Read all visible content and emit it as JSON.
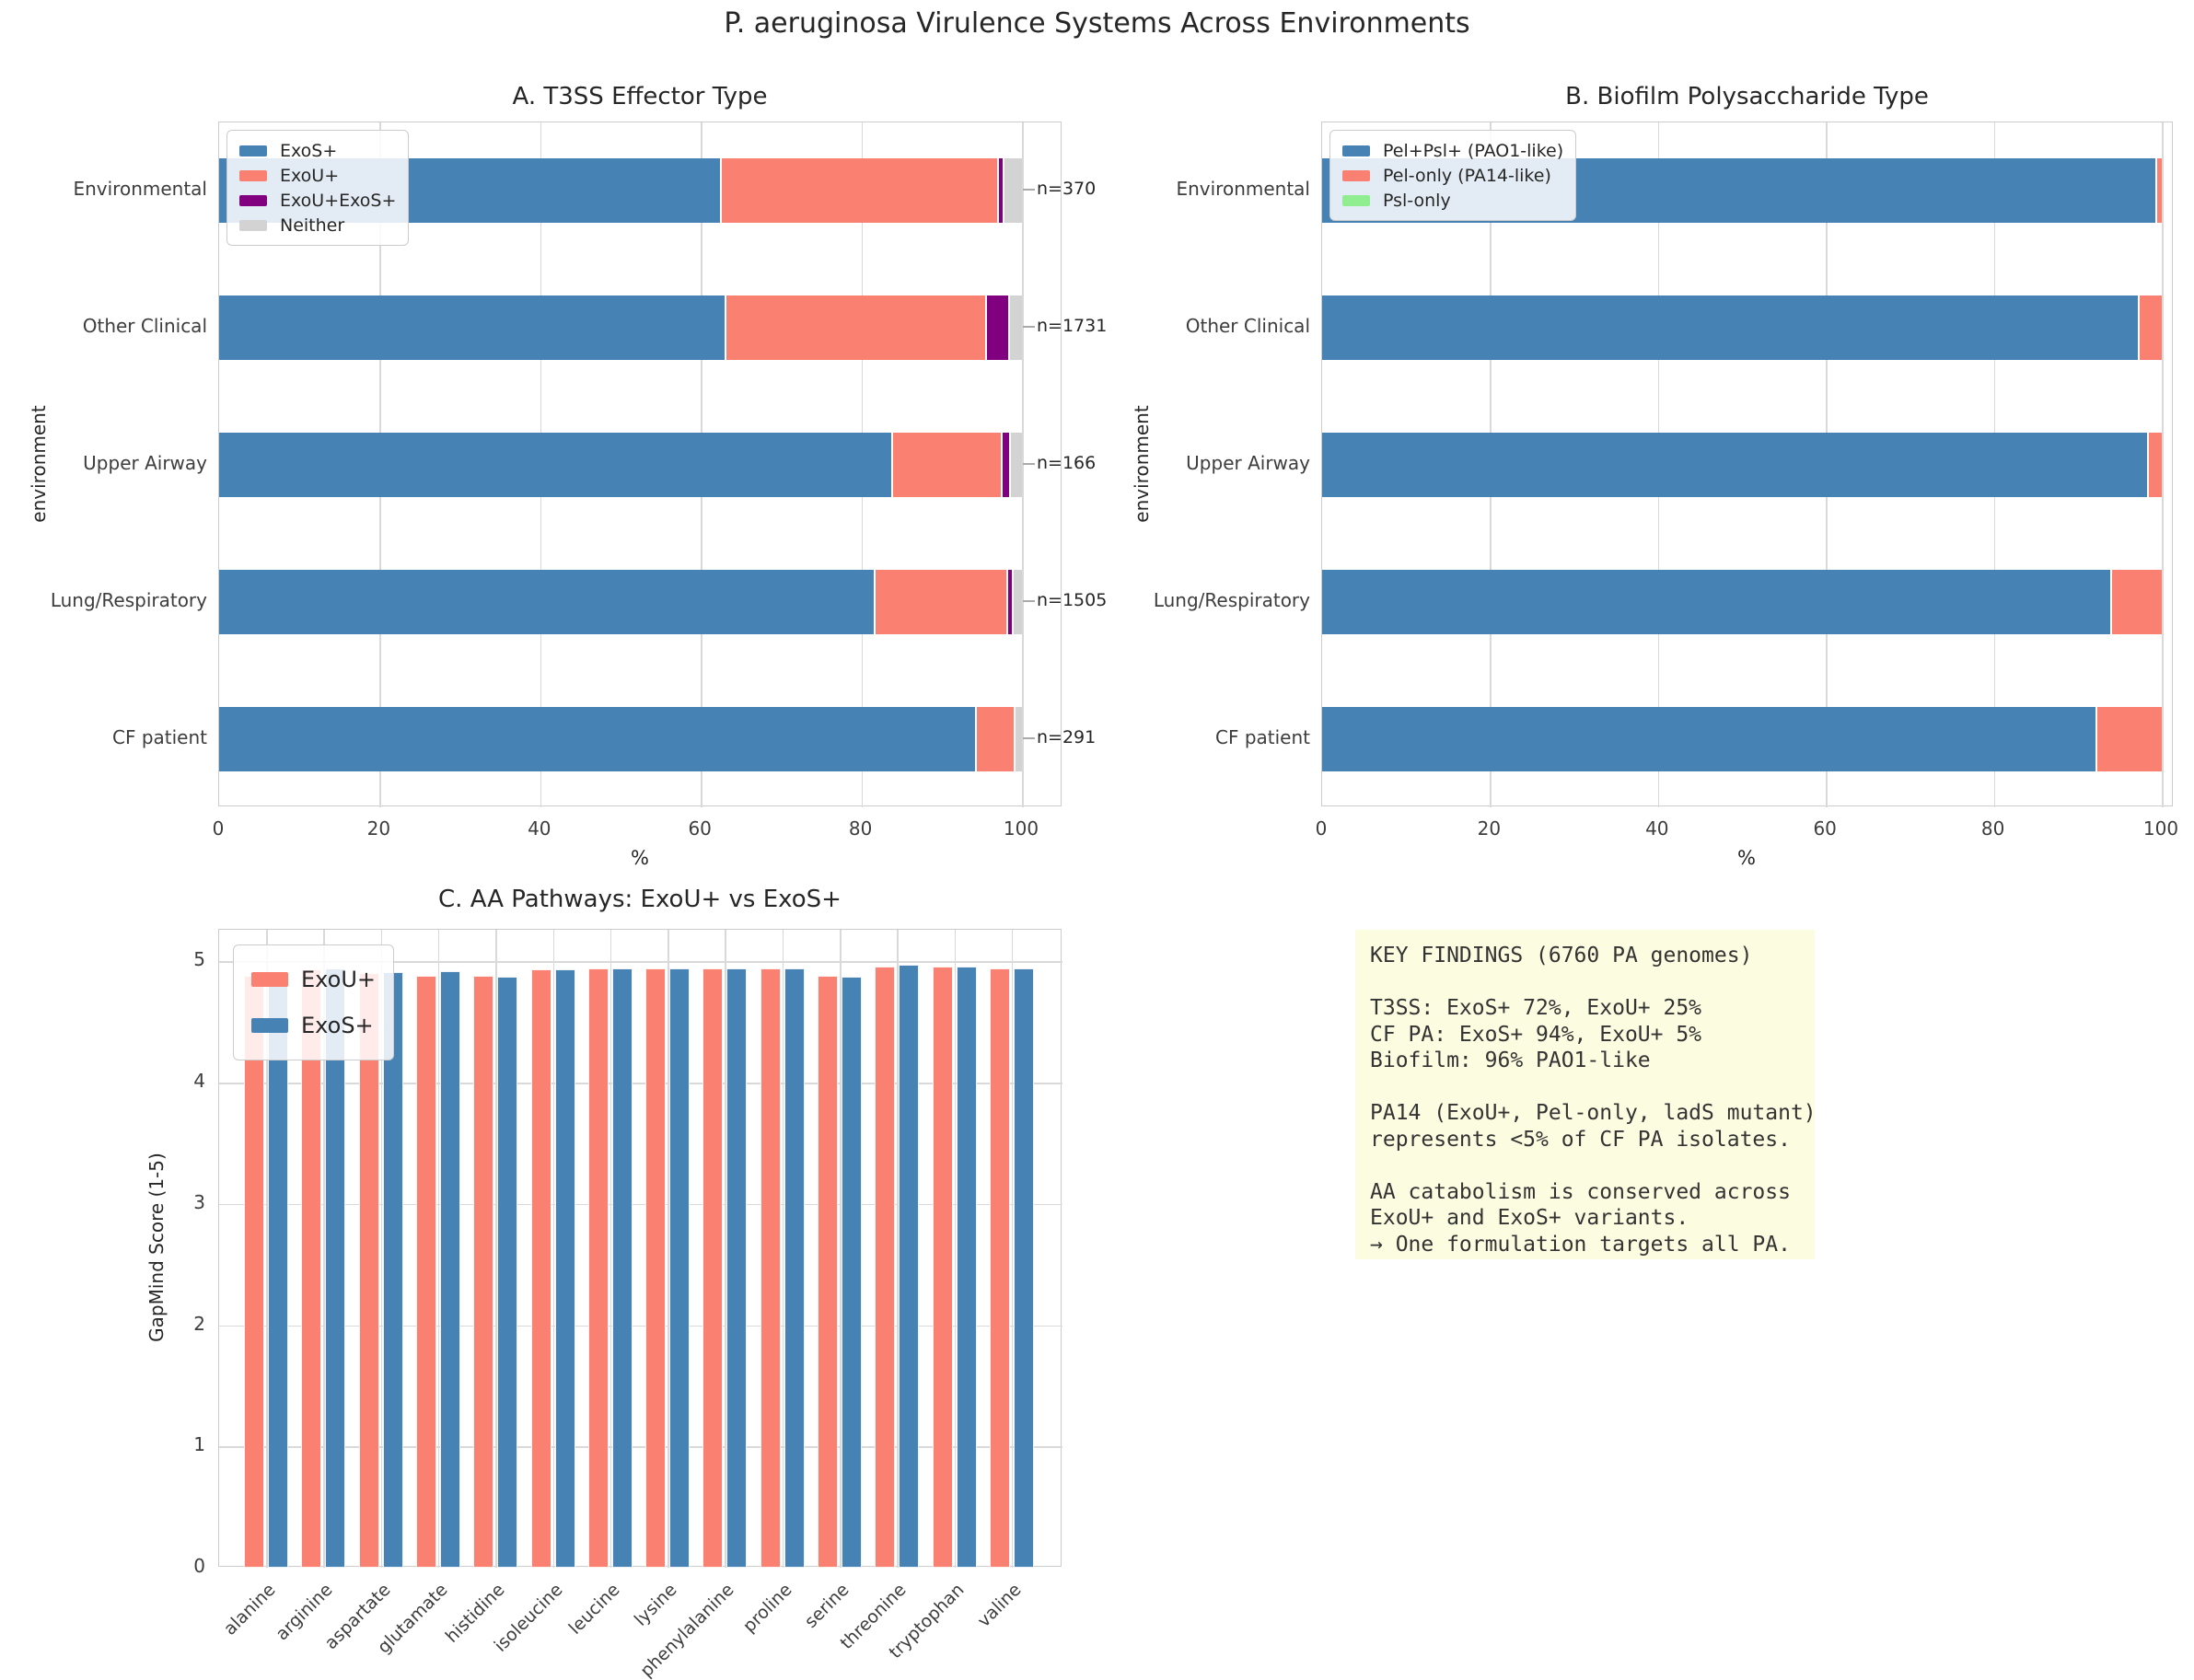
{
  "title": "P. aeruginosa Virulence Systems Across Environments",
  "colors": {
    "exos_blue": "#4682B4",
    "exou_salmon": "#FA8072",
    "both_purple": "#800080",
    "neither_gray": "#D3D3D3",
    "psl_green": "#90EE90",
    "grid": "#d9d9d9",
    "keybox_bg": "#fcfce1"
  },
  "chart_data": [
    {
      "id": "t3ss",
      "type": "stacked_hbar_percent",
      "title": "A. T3SS Effector Type",
      "xlabel": "%",
      "ylabel": "environment",
      "xticks": [
        0,
        20,
        40,
        60,
        80,
        100
      ],
      "xlim": [
        0,
        105
      ],
      "grid": "vertical",
      "legend_position": "upper left",
      "categories": [
        "Environmental",
        "Other Clinical",
        "Upper Airway",
        "Lung/Respiratory",
        "CF patient"
      ],
      "annotations": [
        "n=370",
        "n=1731",
        "n=166",
        "n=1505",
        "n=291"
      ],
      "series": [
        {
          "name": "ExoS+",
          "color": "#4682B4",
          "values": [
            62.4,
            63.0,
            83.7,
            81.5,
            94.2
          ]
        },
        {
          "name": "ExoU+",
          "color": "#FA8072",
          "values": [
            34.5,
            32.4,
            13.7,
            16.5,
            4.8
          ]
        },
        {
          "name": "ExoU+ExoS+",
          "color": "#800080",
          "values": [
            0.7,
            2.9,
            1.0,
            0.7,
            0.0
          ]
        },
        {
          "name": "Neither",
          "color": "#D3D3D3",
          "values": [
            2.4,
            1.7,
            1.6,
            1.3,
            1.0
          ]
        }
      ]
    },
    {
      "id": "biofilm",
      "type": "stacked_hbar_percent",
      "title": "B. Biofilm Polysaccharide Type",
      "xlabel": "%",
      "ylabel": "environment",
      "xticks": [
        0,
        20,
        40,
        60,
        80,
        100
      ],
      "xlim": [
        0,
        101.5
      ],
      "grid": "vertical",
      "legend_position": "upper left",
      "categories": [
        "Environmental",
        "Other Clinical",
        "Upper Airway",
        "Lung/Respiratory",
        "CF patient"
      ],
      "annotations": [],
      "series": [
        {
          "name": "Pel+Psl+ (PAO1-like)",
          "color": "#4682B4",
          "values": [
            99.2,
            97.2,
            98.2,
            93.9,
            92.1
          ]
        },
        {
          "name": "Pel-only (PA14-like)",
          "color": "#FA8072",
          "values": [
            0.8,
            2.8,
            1.8,
            6.1,
            7.9
          ]
        },
        {
          "name": "Psl-only",
          "color": "#90EE90",
          "values": [
            0.0,
            0.0,
            0.0,
            0.0,
            0.0
          ]
        }
      ]
    },
    {
      "id": "aa_pathways",
      "type": "grouped_bar",
      "title": "C. AA Pathways: ExoU+ vs ExoS+",
      "xlabel": "",
      "ylabel": "GapMind Score (1-5)",
      "yticks": [
        0,
        1,
        2,
        3,
        4,
        5
      ],
      "ylim": [
        0,
        5.26
      ],
      "grid": "both",
      "legend_position": "upper left",
      "categories": [
        "alanine",
        "arginine",
        "aspartate",
        "glutamate",
        "histidine",
        "isoleucine",
        "leucine",
        "lysine",
        "phenylalanine",
        "proline",
        "serine",
        "threonine",
        "tryptophan",
        "valine"
      ],
      "series": [
        {
          "name": "ExoU+",
          "color": "#FA8072",
          "values": [
            4.88,
            4.93,
            4.9,
            4.88,
            4.88,
            4.93,
            4.94,
            4.94,
            4.94,
            4.94,
            4.88,
            4.96,
            4.96,
            4.94
          ]
        },
        {
          "name": "ExoS+",
          "color": "#4682B4",
          "values": [
            4.87,
            4.94,
            4.91,
            4.92,
            4.87,
            4.93,
            4.94,
            4.94,
            4.94,
            4.94,
            4.87,
            4.97,
            4.96,
            4.94
          ]
        }
      ]
    }
  ],
  "key_findings": {
    "text": "KEY FINDINGS (6760 PA genomes)\n\nT3SS: ExoS+ 72%, ExoU+ 25%\nCF PA: ExoS+ 94%, ExoU+ 5%\nBiofilm: 96% PAO1-like\n\nPA14 (ExoU+, Pel-only, ladS mutant)\nrepresents <5% of CF PA isolates.\n\nAA catabolism is conserved across\nExoU+ and ExoS+ variants.\n→ One formulation targets all PA."
  }
}
